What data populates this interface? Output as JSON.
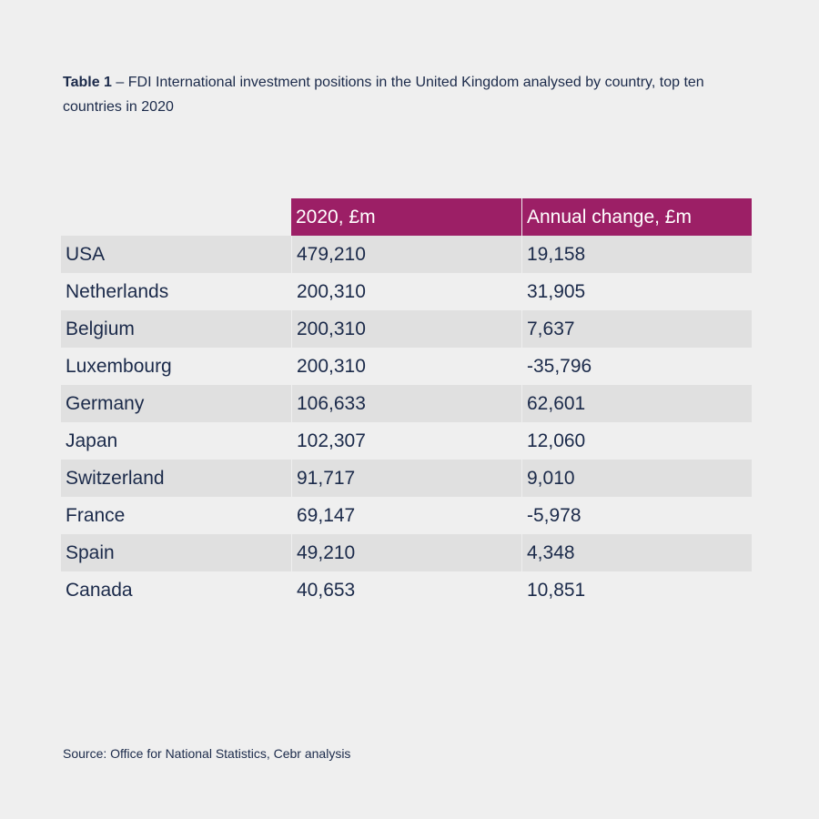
{
  "caption": {
    "table_number": "Table 1",
    "text": " – FDI International investment positions in the United Kingdom analysed by country, top ten countries in 2020"
  },
  "chart_data": {
    "type": "table",
    "columns": [
      "",
      "2020, £m",
      "Annual change, £m"
    ],
    "rows": [
      {
        "country": "USA",
        "value_2020": "479,210",
        "annual_change": "19,158"
      },
      {
        "country": "Netherlands",
        "value_2020": "200,310",
        "annual_change": "31,905"
      },
      {
        "country": "Belgium",
        "value_2020": "200,310",
        "annual_change": "7,637"
      },
      {
        "country": "Luxembourg",
        "value_2020": "200,310",
        "annual_change": "-35,796"
      },
      {
        "country": "Germany",
        "value_2020": "106,633",
        "annual_change": "62,601"
      },
      {
        "country": "Japan",
        "value_2020": "102,307",
        "annual_change": "12,060"
      },
      {
        "country": "Switzerland",
        "value_2020": "91,717",
        "annual_change": "9,010"
      },
      {
        "country": "France",
        "value_2020": "69,147",
        "annual_change": "-5,978"
      },
      {
        "country": "Spain",
        "value_2020": "49,210",
        "annual_change": "4,348"
      },
      {
        "country": "Canada",
        "value_2020": "40,653",
        "annual_change": "10,851"
      }
    ]
  },
  "colors": {
    "header_bg": "#9c1f66",
    "header_text": "#ffffff",
    "odd_row_bg": "#e0e0e0",
    "even_row_bg": "#efefef",
    "page_bg": "#efefef",
    "text": "#1b2a4a"
  },
  "source": "Source: Office for National Statistics, Cebr analysis"
}
